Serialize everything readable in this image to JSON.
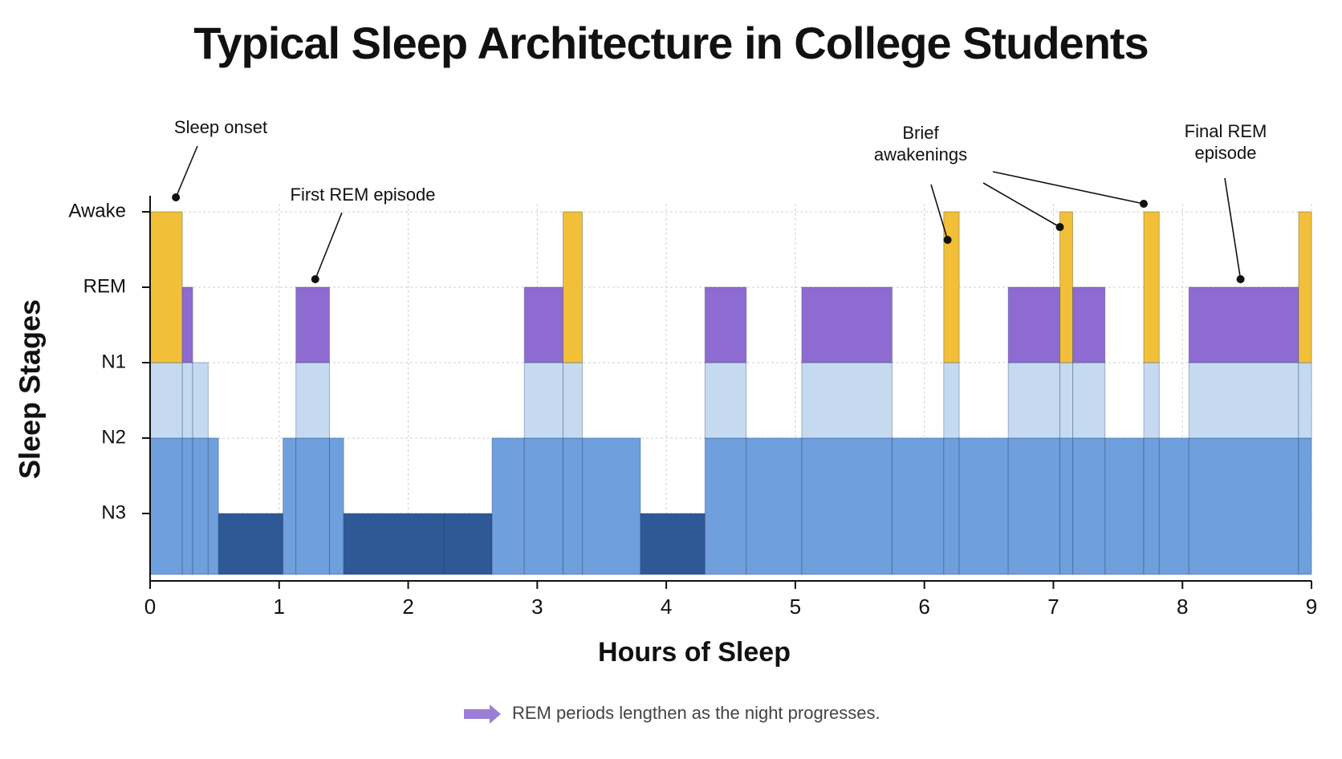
{
  "chart_data": {
    "type": "hypnogram",
    "title": "Typical Sleep Architecture in College Students",
    "x_label": "Hours of Sleep",
    "y_label": "Sleep Stages",
    "stages": [
      "Awake",
      "REM",
      "N1",
      "N2",
      "N3"
    ],
    "stage_colors": [
      "#f2c038",
      "#8e6bd0",
      "#c5daf0",
      "#6f9fdc",
      "#2f5896"
    ],
    "xlim": [
      0,
      9
    ],
    "xticks": [
      0,
      1,
      2,
      3,
      4,
      5,
      6,
      7,
      8,
      9
    ],
    "grid": true,
    "segments": [
      {
        "start": 0,
        "end": 0.25,
        "stage": "Awake"
      },
      {
        "start": 0.25,
        "end": 0.33,
        "stage": "REM"
      },
      {
        "start": 0.33,
        "end": 0.45,
        "stage": "N1"
      },
      {
        "start": 0.45,
        "end": 0.53,
        "stage": "N2"
      },
      {
        "start": 0.53,
        "end": 1.03,
        "stage": "N3"
      },
      {
        "start": 1.03,
        "end": 1.13,
        "stage": "N2"
      },
      {
        "start": 1.13,
        "end": 1.39,
        "stage": "REM"
      },
      {
        "start": 1.39,
        "end": 1.5,
        "stage": "N2"
      },
      {
        "start": 1.5,
        "end": 2.28,
        "stage": "N3"
      },
      {
        "start": 2.28,
        "end": 2.65,
        "stage": "N3"
      },
      {
        "start": 2.65,
        "end": 2.9,
        "stage": "N2"
      },
      {
        "start": 2.9,
        "end": 3.2,
        "stage": "REM"
      },
      {
        "start": 3.2,
        "end": 3.35,
        "stage": "Awake"
      },
      {
        "start": 3.35,
        "end": 3.8,
        "stage": "N2"
      },
      {
        "start": 3.8,
        "end": 4.3,
        "stage": "N3"
      },
      {
        "start": 4.3,
        "end": 4.62,
        "stage": "REM"
      },
      {
        "start": 4.62,
        "end": 5.05,
        "stage": "N2"
      },
      {
        "start": 5.05,
        "end": 5.75,
        "stage": "REM"
      },
      {
        "start": 5.75,
        "end": 6.15,
        "stage": "N2"
      },
      {
        "start": 6.15,
        "end": 6.27,
        "stage": "Awake"
      },
      {
        "start": 6.27,
        "end": 6.65,
        "stage": "N2"
      },
      {
        "start": 6.65,
        "end": 7.05,
        "stage": "REM"
      },
      {
        "start": 7.05,
        "end": 7.15,
        "stage": "Awake"
      },
      {
        "start": 7.15,
        "end": 7.4,
        "stage": "REM"
      },
      {
        "start": 7.4,
        "end": 7.7,
        "stage": "N2"
      },
      {
        "start": 7.7,
        "end": 7.82,
        "stage": "Awake"
      },
      {
        "start": 7.82,
        "end": 8.05,
        "stage": "N2"
      },
      {
        "start": 8.05,
        "end": 8.9,
        "stage": "REM"
      },
      {
        "start": 8.9,
        "end": 9,
        "stage": "Awake"
      }
    ],
    "annotations": [
      {
        "text": "Sleep onset",
        "targets": [
          0.2
        ],
        "stage": "Awake"
      },
      {
        "text": "First REM episode",
        "targets": [
          1.28
        ],
        "stage": "REM"
      },
      {
        "text": "Brief awakenings",
        "targets": [
          6.18,
          7.05,
          7.7
        ],
        "stage": "Awake"
      },
      {
        "text": "Final REM episode",
        "targets": [
          8.45
        ],
        "stage": "REM"
      }
    ],
    "note": "REM periods lengthen as the night progresses."
  }
}
